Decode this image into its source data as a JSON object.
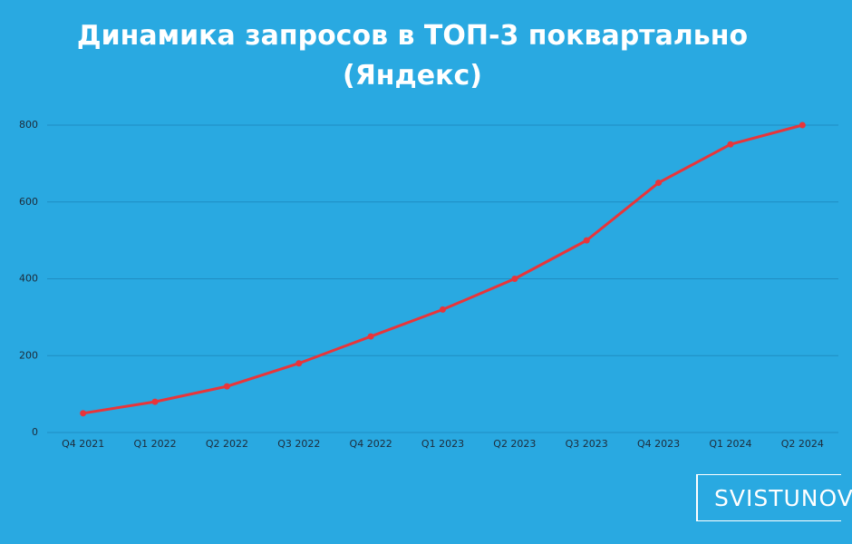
{
  "chart_data": {
    "type": "line",
    "title": "Динамика запросов в ТОП-3 поквартально (Яндекс)",
    "categories": [
      "Q4 2021",
      "Q1 2022",
      "Q2 2022",
      "Q3 2022",
      "Q4 2022",
      "Q1 2023",
      "Q2 2023",
      "Q3 2023",
      "Q4 2023",
      "Q1 2024",
      "Q2 2024"
    ],
    "values": [
      50,
      80,
      120,
      180,
      250,
      320,
      400,
      500,
      650,
      750,
      800
    ],
    "color": "#e8353a",
    "ylim": [
      0,
      800
    ],
    "yticks": [
      0,
      200,
      400,
      600,
      800
    ],
    "grid": true
  },
  "logo": "SVISTUNOV"
}
